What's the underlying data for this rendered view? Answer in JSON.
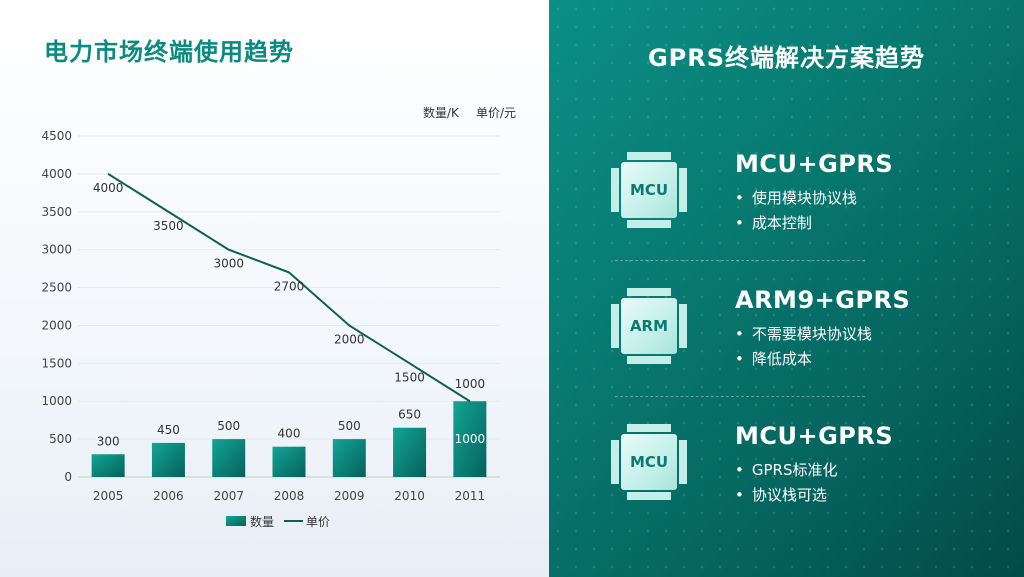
{
  "left_panel": {
    "title": "电力市场终端使用趋势",
    "unit_quantity": "数量/K",
    "unit_price": "单价/元"
  },
  "right_panel": {
    "title": "GPRS终端解决方案趋势",
    "solutions": [
      {
        "chip": "MCU",
        "title": "MCU+GPRS",
        "bullets": [
          "使用模块协议栈",
          "成本控制"
        ]
      },
      {
        "chip": "ARM",
        "title": "ARM9+GPRS",
        "bullets": [
          "不需要模块协议栈",
          "降低成本"
        ]
      },
      {
        "chip": "MCU",
        "title": "MCU+GPRS",
        "bullets": [
          "GPRS标准化",
          "协议栈可选"
        ]
      }
    ]
  },
  "chart_data": {
    "type": "bar",
    "categories": [
      "2005",
      "2006",
      "2007",
      "2008",
      "2009",
      "2010",
      "2011"
    ],
    "series": [
      {
        "name": "数量",
        "type": "bar",
        "values": [
          300,
          450,
          500,
          400,
          500,
          650,
          1000
        ]
      },
      {
        "name": "单价",
        "type": "line",
        "values": [
          4000,
          3500,
          3000,
          2700,
          2000,
          1500,
          1000
        ]
      }
    ],
    "yticks": [
      "0",
      "500",
      "1000",
      "1500",
      "2000",
      "2500",
      "3000",
      "3500",
      "4000",
      "4500"
    ],
    "ylim": [
      0,
      4500
    ],
    "grid": true,
    "legend": "bottom-center",
    "colors": {
      "bar": "#0b8a80",
      "line": "#0f5e58"
    }
  }
}
